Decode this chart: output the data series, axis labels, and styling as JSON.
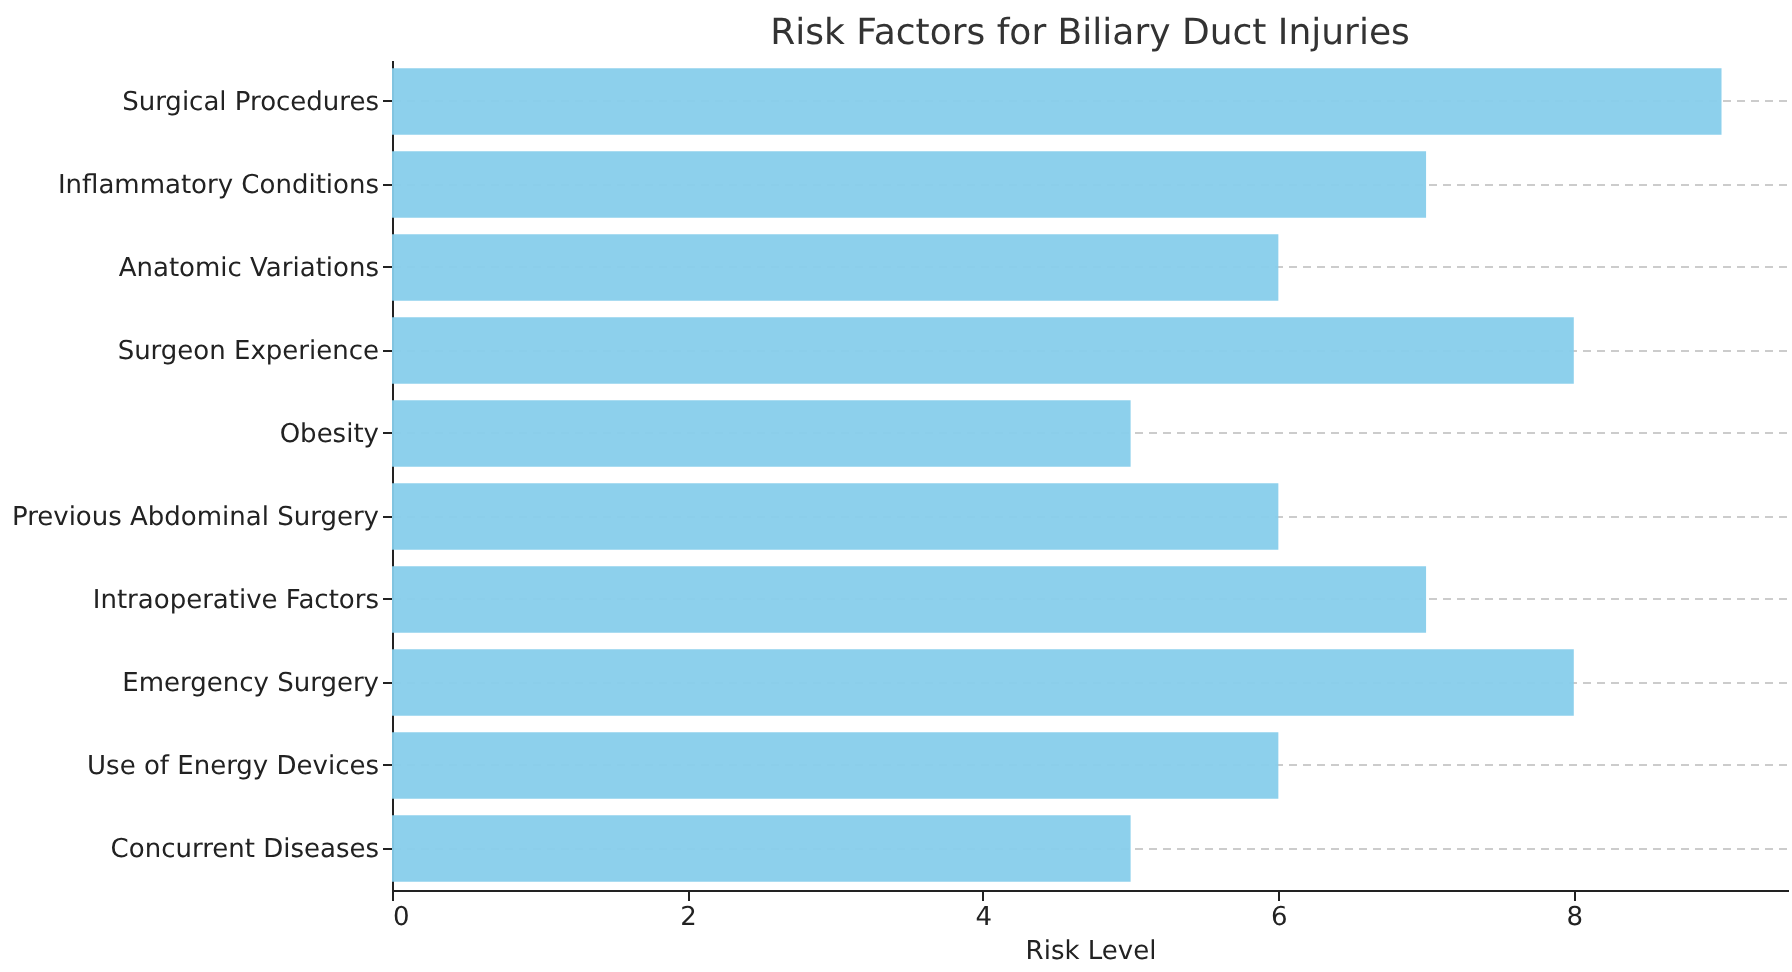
{
  "chart_data": {
    "type": "bar",
    "orientation": "horizontal",
    "title": "Risk Factors for Biliary Duct Injuries",
    "xlabel": "Risk Level",
    "categories": [
      "Surgical Procedures",
      "Inflammatory Conditions",
      "Anatomic Variations",
      "Surgeon Experience",
      "Obesity",
      "Previous Abdominal Surgery",
      "Intraoperative Factors",
      "Emergency Surgery",
      "Use of Energy Devices",
      "Concurrent Diseases"
    ],
    "values": [
      9,
      7,
      6,
      8,
      5,
      6,
      7,
      8,
      6,
      5
    ],
    "color": "#87ceeb",
    "xlim": [
      0,
      9.45
    ],
    "xticks": [
      0,
      2,
      4,
      6,
      8
    ],
    "grid": "y"
  }
}
